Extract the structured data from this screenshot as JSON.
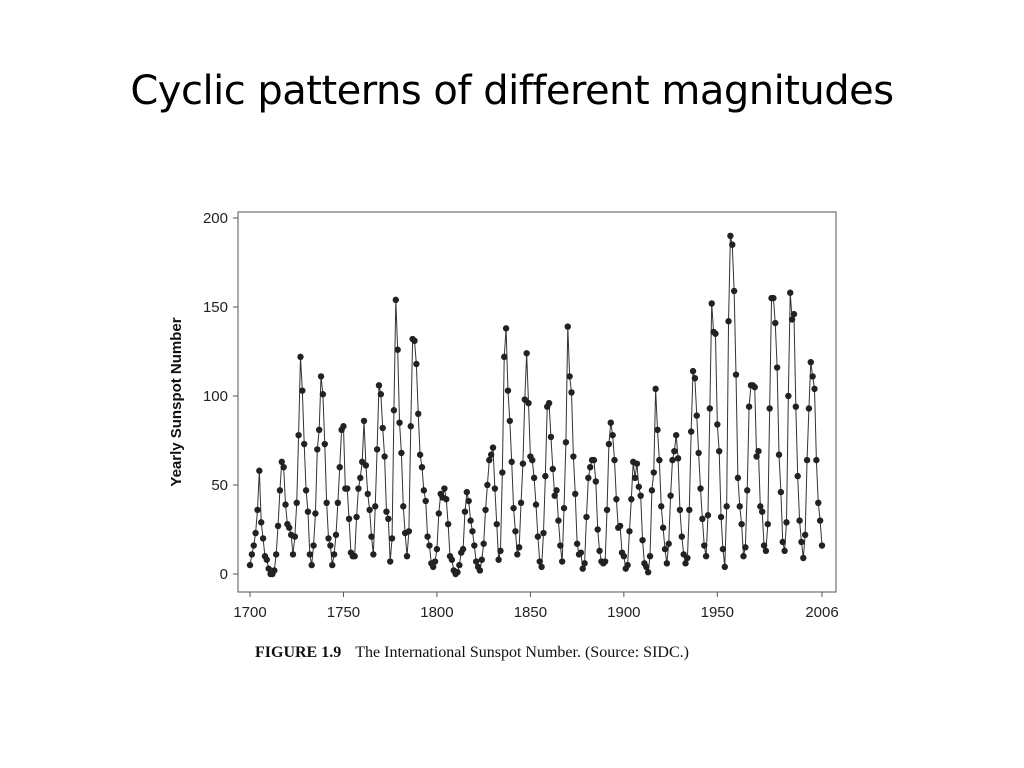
{
  "slide": {
    "title": "Cyclic patterns of different magnitudes"
  },
  "caption": {
    "figure_number": "FIGURE 1.9",
    "text": "The International Sunspot Number. (Source: SIDC.)"
  },
  "chart_data": {
    "type": "line",
    "title": "",
    "xlabel": "",
    "ylabel": "Yearly Sunspot Number",
    "xlim": [
      1700,
      2006
    ],
    "ylim": [
      0,
      200
    ],
    "x_ticks": [
      1700,
      1750,
      1800,
      1850,
      1900,
      1950,
      2006
    ],
    "y_ticks": [
      0,
      50,
      100,
      150,
      200
    ],
    "grid": false,
    "legend": "none",
    "markers": true,
    "colors": {
      "line": "#333333",
      "marker": "#222222"
    },
    "series": [
      {
        "x_start": 1700,
        "x_step": 1,
        "values": [
          5,
          11,
          16,
          23,
          36,
          58,
          29,
          20,
          10,
          8,
          3,
          0,
          0,
          2,
          11,
          27,
          47,
          63,
          60,
          39,
          28,
          26,
          22,
          11,
          21,
          40,
          78,
          122,
          103,
          73,
          47,
          35,
          11,
          5,
          16,
          34,
          70,
          81,
          111,
          101,
          73,
          40,
          20,
          16,
          5,
          11,
          22,
          40,
          60,
          81,
          83,
          48,
          48,
          31,
          12,
          10,
          10,
          32,
          48,
          54,
          63,
          86,
          61,
          45,
          36,
          21,
          11,
          38,
          70,
          106,
          101,
          82,
          66,
          35,
          31,
          7,
          20,
          92,
          154,
          126,
          85,
          68,
          38,
          23,
          10,
          24,
          83,
          132,
          131,
          118,
          90,
          67,
          60,
          47,
          41,
          21,
          16,
          6,
          4,
          7,
          14,
          34,
          45,
          43,
          48,
          42,
          28,
          10,
          8,
          2,
          0,
          1,
          5,
          12,
          14,
          35,
          46,
          41,
          30,
          24,
          16,
          7,
          4,
          2,
          8,
          17,
          36,
          50,
          64,
          67,
          71,
          48,
          28,
          8,
          13,
          57,
          122,
          138,
          103,
          86,
          63,
          37,
          24,
          11,
          15,
          40,
          62,
          98,
          124,
          96,
          66,
          64,
          54,
          39,
          21,
          7,
          4,
          23,
          55,
          94,
          96,
          77,
          59,
          44,
          47,
          30,
          16,
          7,
          37,
          74,
          139,
          111,
          102,
          66,
          45,
          17,
          11,
          12,
          3,
          6,
          32,
          54,
          60,
          64,
          64,
          52,
          25,
          13,
          7,
          6,
          7,
          36,
          73,
          85,
          78,
          64,
          42,
          26,
          27,
          12,
          10,
          3,
          5,
          24,
          42,
          63,
          54,
          62,
          49,
          44,
          19,
          6,
          4,
          1,
          10,
          47,
          57,
          104,
          81,
          64,
          38,
          26,
          14,
          6,
          17,
          44,
          64,
          69,
          78,
          65,
          36,
          21,
          11,
          6,
          9,
          36,
          80,
          114,
          110,
          89,
          68,
          48,
          31,
          16,
          10,
          33,
          93,
          152,
          136,
          135,
          84,
          69,
          32,
          14,
          4,
          38,
          142,
          190,
          185,
          159,
          112,
          54,
          38,
          28,
          10,
          15,
          47,
          94,
          106,
          106,
          105,
          66,
          69,
          38,
          35,
          16,
          13,
          28,
          93,
          155,
          155,
          141,
          116,
          67,
          46,
          18,
          13,
          29,
          100,
          158,
          143,
          146,
          94,
          55,
          30,
          18,
          9,
          22,
          64,
          93,
          119,
          111,
          104,
          64,
          40,
          30,
          16
        ]
      }
    ]
  }
}
